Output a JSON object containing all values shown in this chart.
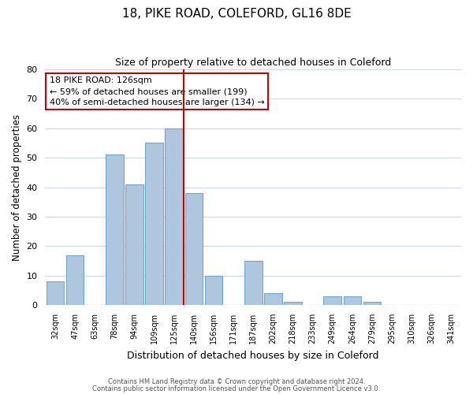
{
  "title": "18, PIKE ROAD, COLEFORD, GL16 8DE",
  "subtitle": "Size of property relative to detached houses in Coleford",
  "xlabel": "Distribution of detached houses by size in Coleford",
  "ylabel": "Number of detached properties",
  "bar_labels": [
    "32sqm",
    "47sqm",
    "63sqm",
    "78sqm",
    "94sqm",
    "109sqm",
    "125sqm",
    "140sqm",
    "156sqm",
    "171sqm",
    "187sqm",
    "202sqm",
    "218sqm",
    "233sqm",
    "249sqm",
    "264sqm",
    "279sqm",
    "295sqm",
    "310sqm",
    "326sqm",
    "341sqm"
  ],
  "bar_values": [
    8,
    17,
    0,
    51,
    41,
    55,
    60,
    38,
    10,
    0,
    15,
    4,
    1,
    0,
    3,
    3,
    1,
    0,
    0,
    0,
    0
  ],
  "bar_color": "#aec6de",
  "bar_edge_color": "#6fa8d0",
  "highlight_x_label": "125sqm",
  "highlight_line_color": "#cc0000",
  "ylim": [
    0,
    80
  ],
  "yticks": [
    0,
    10,
    20,
    30,
    40,
    50,
    60,
    70,
    80
  ],
  "annotation_title": "18 PIKE ROAD: 126sqm",
  "annotation_line1": "← 59% of detached houses are smaller (199)",
  "annotation_line2": "40% of semi-detached houses are larger (134) →",
  "annotation_box_color": "#ffffff",
  "annotation_box_edge": "#cc0000",
  "footer1": "Contains HM Land Registry data © Crown copyright and database right 2024.",
  "footer2": "Contains public sector information licensed under the Open Government Licence v3.0.",
  "background_color": "#ffffff",
  "grid_color": "#d0d8e4"
}
